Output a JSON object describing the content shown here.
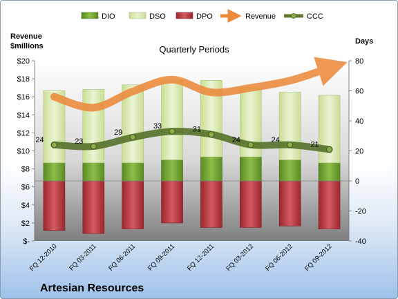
{
  "chart_data": {
    "type": "bar",
    "title": "Quarterly Periods",
    "company": "Artesian Resources",
    "left_axis_title_line1": "Revenue",
    "left_axis_title_line2": "$millions",
    "right_axis_title": "Days",
    "categories": [
      "FQ 12-2010",
      "FQ 03-2011",
      "FQ 06-2011",
      "FQ 09-2011",
      "FQ 12-2011",
      "FQ 03-2012",
      "FQ 06-2012",
      "FQ 09-2012"
    ],
    "left_ylim": [
      0,
      20
    ],
    "left_ticks": [
      "$-",
      "$2",
      "$4",
      "$6",
      "$8",
      "$10",
      "$12",
      "$14",
      "$16",
      "$18",
      "$20"
    ],
    "right_ylim": [
      -40,
      80
    ],
    "right_ticks": [
      "-40",
      "-20",
      "0",
      "20",
      "40",
      "60",
      "80"
    ],
    "series": [
      {
        "name": "DIO",
        "color": "#6b9a2c",
        "values": [
          12,
          12,
          12,
          14,
          16,
          16,
          14,
          12
        ]
      },
      {
        "name": "DSO",
        "color": "#d6e8ad",
        "values": [
          48,
          49,
          52,
          53,
          51,
          46,
          45,
          45
        ]
      },
      {
        "name": "DPO",
        "color": "#b5323a",
        "values": [
          -33,
          -35,
          -32,
          -28,
          -31,
          -31,
          -30,
          -32
        ]
      },
      {
        "name": "Revenue",
        "color": "#ec8a3c",
        "values": [
          16.0,
          14.8,
          16.6,
          17.9,
          16.5,
          17.0,
          17.8,
          19.2
        ]
      },
      {
        "name": "CCC",
        "color": "#5f7a2c",
        "values": [
          24,
          23,
          29,
          33,
          31,
          24,
          24,
          21
        ]
      }
    ],
    "ccc_labels": [
      "24",
      "23",
      "29",
      "33",
      "31",
      "24",
      "24",
      "21"
    ],
    "legend": [
      "DIO",
      "DSO",
      "DPO",
      "Revenue",
      "CCC"
    ],
    "legend_placement": "top"
  }
}
